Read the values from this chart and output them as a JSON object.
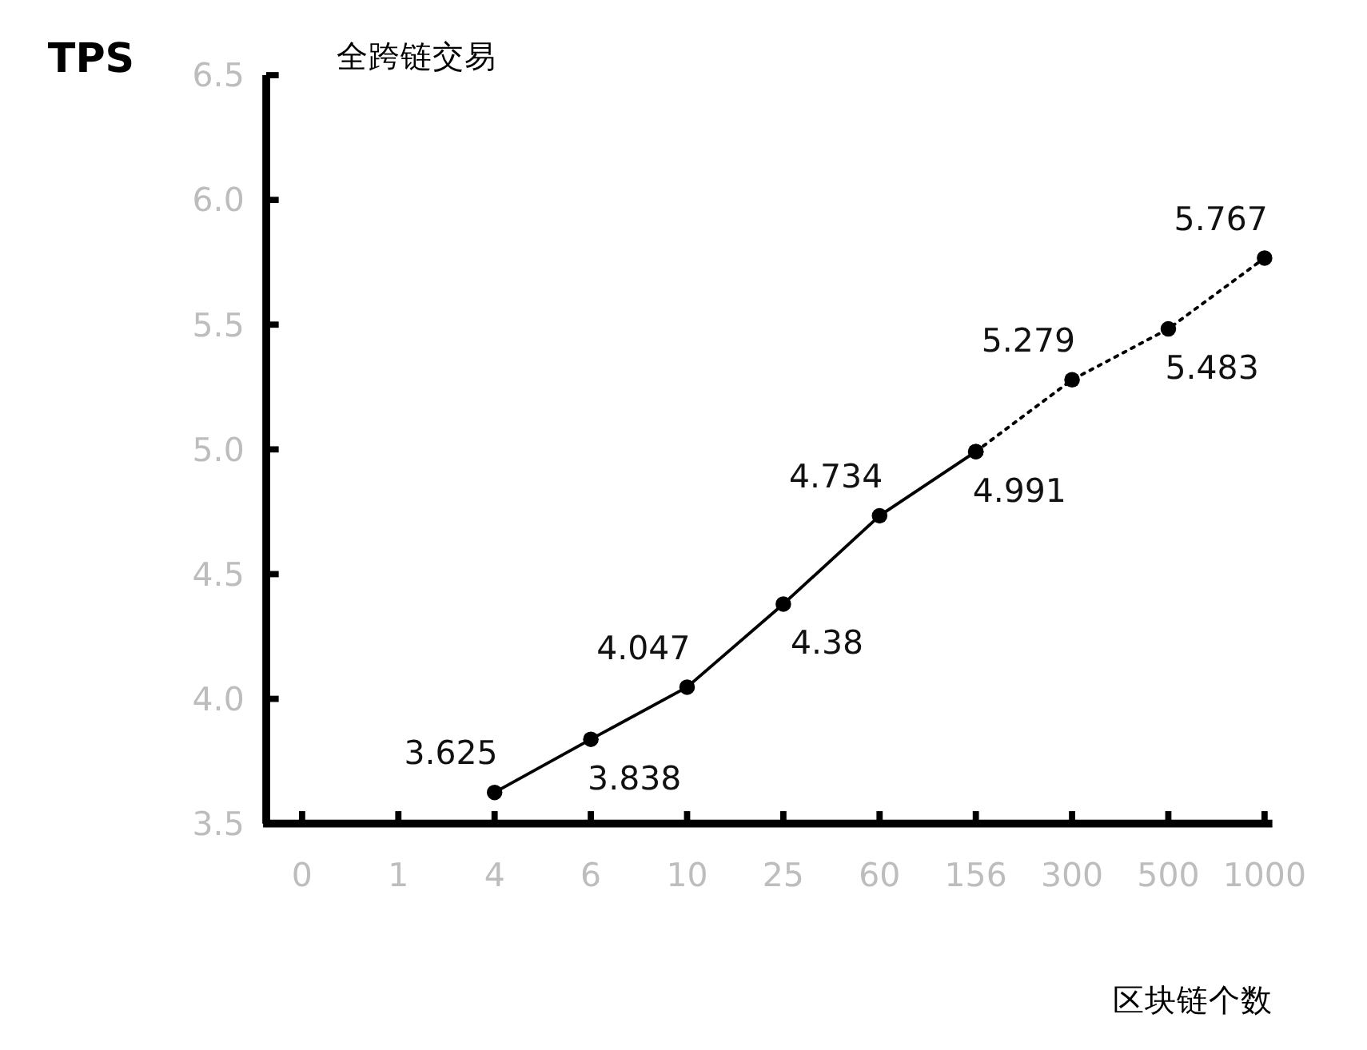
{
  "chart_data": {
    "type": "line",
    "title": "全跨链交易",
    "xlabel": "区块链个数",
    "ylabel": "TPS",
    "categories": [
      "0",
      "1",
      "4",
      "6",
      "10",
      "25",
      "60",
      "156",
      "300",
      "500",
      "1000"
    ],
    "series": [
      {
        "color": "#000000",
        "line_style": "solid",
        "values": [
          null,
          null,
          3.625,
          3.838,
          4.047,
          4.38,
          4.734,
          4.991,
          null,
          null,
          null
        ],
        "value_labels": [
          null,
          null,
          "3.625",
          "3.838",
          "4.047",
          "4.38",
          "4.734",
          "4.991",
          null,
          null,
          null
        ]
      },
      {
        "color": "#000000",
        "line_style": "dotted",
        "values": [
          null,
          null,
          null,
          null,
          null,
          null,
          null,
          4.991,
          5.279,
          5.483,
          5.767
        ],
        "value_labels": [
          null,
          null,
          null,
          null,
          null,
          null,
          null,
          null,
          "5.279",
          "5.483",
          "5.767"
        ]
      }
    ],
    "ylim": [
      3.5,
      6.5
    ],
    "yticks": [
      3.5,
      {
        "value": 4,
        "label": "4.0"
      },
      4.5,
      {
        "value": 5,
        "label": "5.0"
      },
      5.5,
      {
        "value": 6,
        "label": "6.0"
      },
      6.5
    ],
    "marker": "circle",
    "grid": false
  }
}
